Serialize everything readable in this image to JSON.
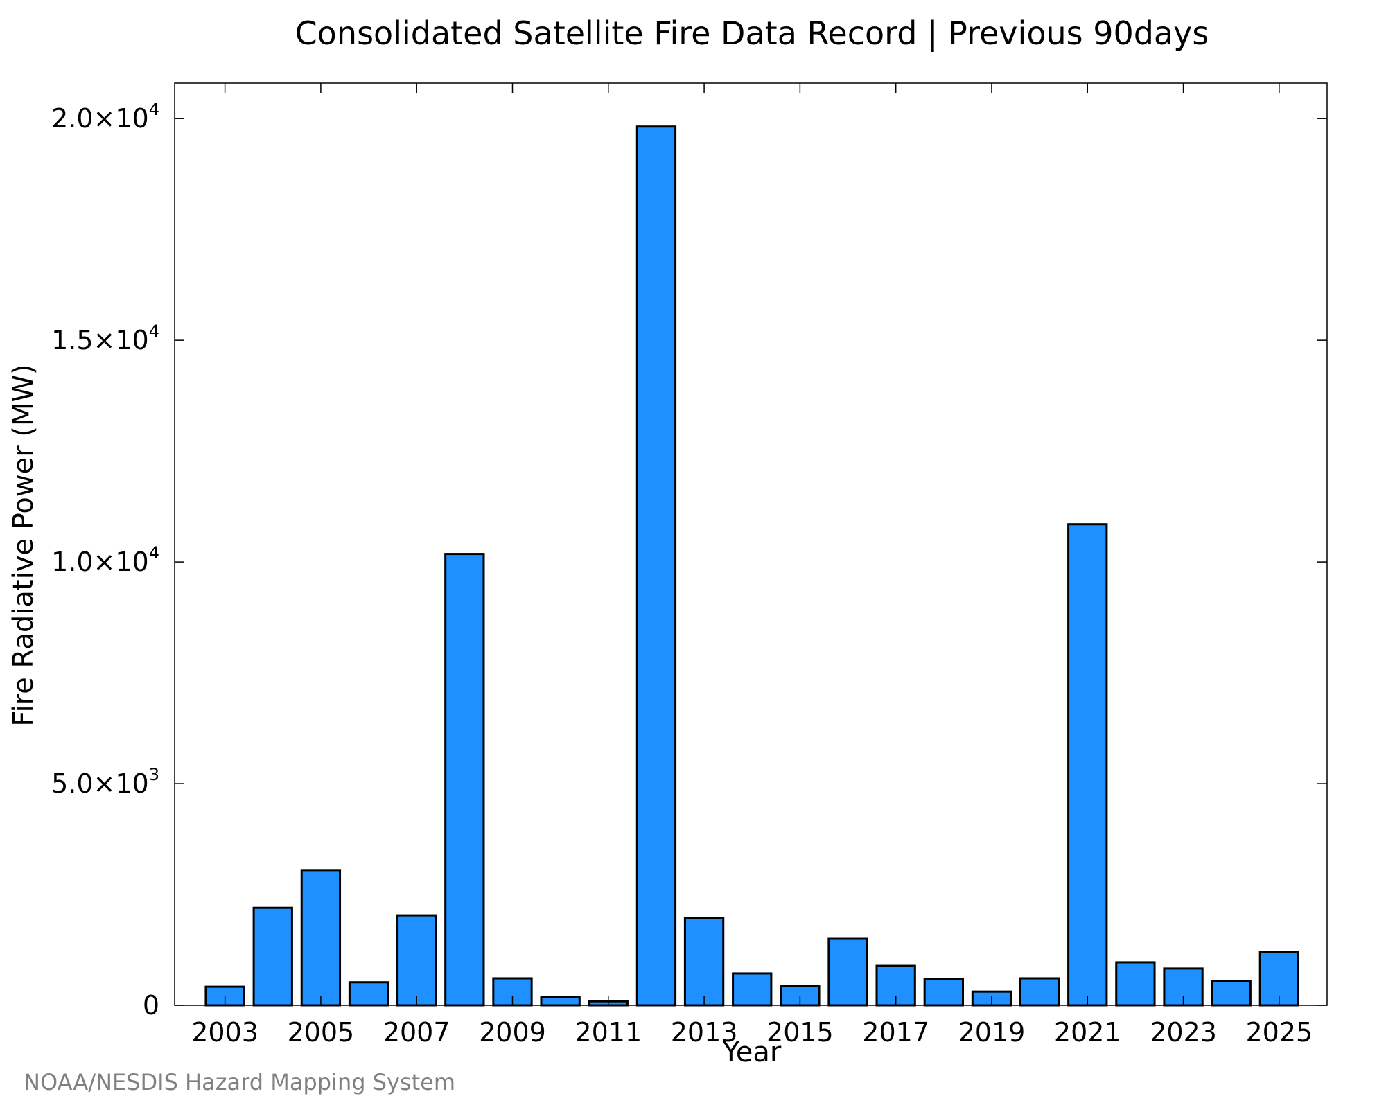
{
  "chart_data": {
    "type": "bar",
    "title": "Consolidated Satellite Fire Data Record | Previous 90days",
    "xlabel": "Year",
    "ylabel": "Fire Radiative Power (MW)",
    "ylim": [
      0,
      20800
    ],
    "y_ticks": [
      {
        "value": 0,
        "mantissa": "0",
        "exponent": ""
      },
      {
        "value": 5000,
        "mantissa": "5.0×10",
        "exponent": "3"
      },
      {
        "value": 10000,
        "mantissa": "1.0×10",
        "exponent": "4"
      },
      {
        "value": 15000,
        "mantissa": "1.5×10",
        "exponent": "4"
      },
      {
        "value": 20000,
        "mantissa": "2.0×10",
        "exponent": "4"
      }
    ],
    "x_tick_labels": [
      "2003",
      "2005",
      "2007",
      "2009",
      "2011",
      "2013",
      "2015",
      "2017",
      "2019",
      "2021",
      "2023",
      "2025"
    ],
    "categories": [
      "2003",
      "2004",
      "2005",
      "2006",
      "2007",
      "2008",
      "2009",
      "2010",
      "2011",
      "2012",
      "2013",
      "2014",
      "2015",
      "2016",
      "2017",
      "2018",
      "2019",
      "2020",
      "2021",
      "2022",
      "2023",
      "2024",
      "2025"
    ],
    "values": [
      420,
      2200,
      3050,
      520,
      2030,
      10180,
      610,
      180,
      90,
      19820,
      1970,
      720,
      440,
      1500,
      890,
      590,
      310,
      610,
      10850,
      970,
      830,
      550,
      1200
    ],
    "bar_color": "#1e90ff",
    "grid": false,
    "legend": "none"
  },
  "footer": "NOAA/NESDIS Hazard Mapping System"
}
